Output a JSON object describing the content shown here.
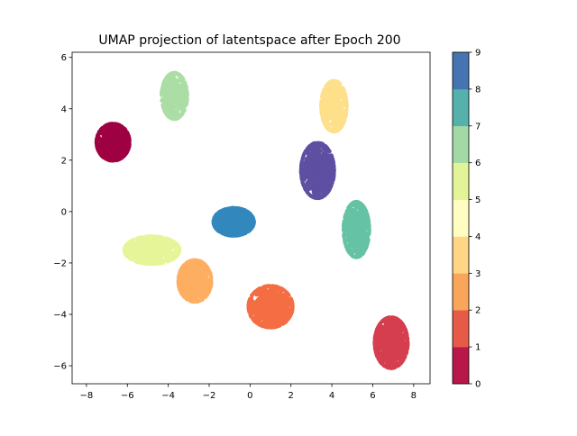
{
  "chart_data": {
    "type": "scatter",
    "title": "UMAP projection of latentspace after Epoch 200",
    "xlabel": "",
    "ylabel": "",
    "xlim": [
      -8.7,
      8.8
    ],
    "ylim": [
      -6.7,
      6.2
    ],
    "xticks": [
      -8,
      -6,
      -4,
      -2,
      0,
      2,
      4,
      6,
      8
    ],
    "yticks": [
      -6,
      -4,
      -2,
      0,
      2,
      4,
      6
    ],
    "grid": false,
    "colorbar": {
      "ticks": [
        0,
        1,
        2,
        3,
        4,
        5,
        6,
        7,
        8,
        9
      ],
      "colors": [
        "#b9174a",
        "#e75a47",
        "#f9a55a",
        "#fed685",
        "#fffec0",
        "#e3f398",
        "#a2d9a4",
        "#54b1ac",
        "#4574b2"
      ]
    },
    "series": [
      {
        "label": 0,
        "color": "#9e0142",
        "center": [
          -6.7,
          2.7
        ],
        "spread": [
          0.45,
          0.4
        ],
        "count": 900
      },
      {
        "label": 1,
        "color": "#d53e4f",
        "center": [
          6.9,
          -5.1
        ],
        "spread": [
          0.45,
          0.55
        ],
        "count": 900
      },
      {
        "label": 2,
        "color": "#f46d43",
        "center": [
          1.0,
          -3.7
        ],
        "spread": [
          0.6,
          0.45
        ],
        "count": 900
      },
      {
        "label": 3,
        "color": "#fdae61",
        "center": [
          -2.7,
          -2.7
        ],
        "spread": [
          0.45,
          0.45
        ],
        "count": 800
      },
      {
        "label": 4,
        "color": "#fee08b",
        "center": [
          4.1,
          4.1
        ],
        "spread": [
          0.35,
          0.55
        ],
        "count": 500
      },
      {
        "label": 5,
        "color": "#e6f598",
        "center": [
          -4.8,
          -1.5
        ],
        "spread": [
          0.75,
          0.3
        ],
        "count": 700
      },
      {
        "label": 6,
        "color": "#abdda4",
        "center": [
          -3.7,
          4.5
        ],
        "spread": [
          0.35,
          0.5
        ],
        "count": 500
      },
      {
        "label": 7,
        "color": "#66c2a5",
        "center": [
          5.2,
          -0.7
        ],
        "spread": [
          0.35,
          0.6
        ],
        "count": 700
      },
      {
        "label": 8,
        "color": "#3288bd",
        "center": [
          -0.8,
          -0.4
        ],
        "spread": [
          0.55,
          0.3
        ],
        "count": 800
      },
      {
        "label": 9,
        "color": "#5e4fa2",
        "center": [
          3.3,
          1.6
        ],
        "spread": [
          0.45,
          0.6
        ],
        "count": 800
      }
    ]
  }
}
